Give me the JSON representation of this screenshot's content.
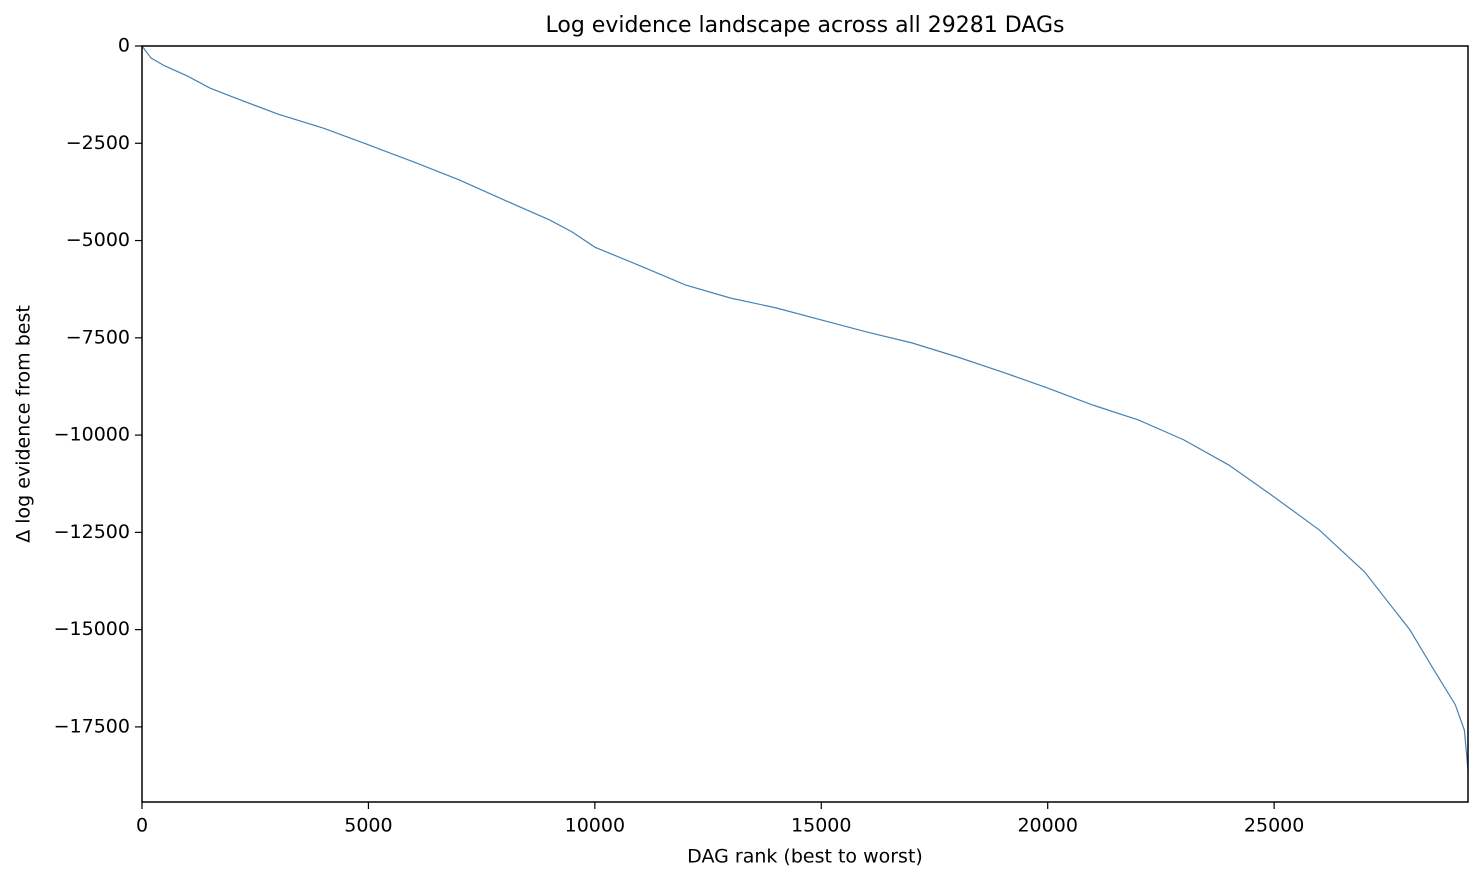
{
  "chart_data": {
    "type": "line",
    "title": "Log evidence landscape across all 29281 DAGs",
    "x_label": "DAG rank (best to worst)",
    "y_label": "Δ log evidence from best",
    "x": [
      0,
      200,
      500,
      1000,
      1500,
      2000,
      3000,
      4000,
      5000,
      6000,
      7000,
      8000,
      9000,
      9500,
      10000,
      11000,
      12000,
      13000,
      14000,
      15000,
      16000,
      17000,
      18000,
      19000,
      20000,
      21000,
      22000,
      23000,
      24000,
      25000,
      26000,
      27000,
      28000,
      28500,
      29000,
      29200,
      29281
    ],
    "series": [
      {
        "name": "log evidence",
        "color": "#4682b4",
        "values": [
          0,
          -310,
          -510,
          -770,
          -1080,
          -1310,
          -1750,
          -2110,
          -2540,
          -2980,
          -3440,
          -3960,
          -4470,
          -4780,
          -5170,
          -5650,
          -6140,
          -6480,
          -6730,
          -7040,
          -7350,
          -7630,
          -7990,
          -8380,
          -8790,
          -9230,
          -9610,
          -10120,
          -10770,
          -11590,
          -12440,
          -13520,
          -15010,
          -15980,
          -16930,
          -17580,
          -18600
        ]
      }
    ],
    "xlim": [
      0,
      29281
    ],
    "ylim": [
      -19430,
      0
    ],
    "xticks": [
      0,
      5000,
      10000,
      15000,
      20000,
      25000
    ],
    "yticks": [
      0,
      {
        "value": -2500,
        "label": "−2500"
      },
      {
        "value": -5000,
        "label": "−5000"
      },
      {
        "value": -7500,
        "label": "−7500"
      },
      {
        "value": -10000,
        "label": "−10000"
      },
      {
        "value": -12500,
        "label": "−12500"
      },
      {
        "value": -15000,
        "label": "−15000"
      },
      {
        "value": -17500,
        "label": "−17500"
      }
    ],
    "grid": false
  }
}
